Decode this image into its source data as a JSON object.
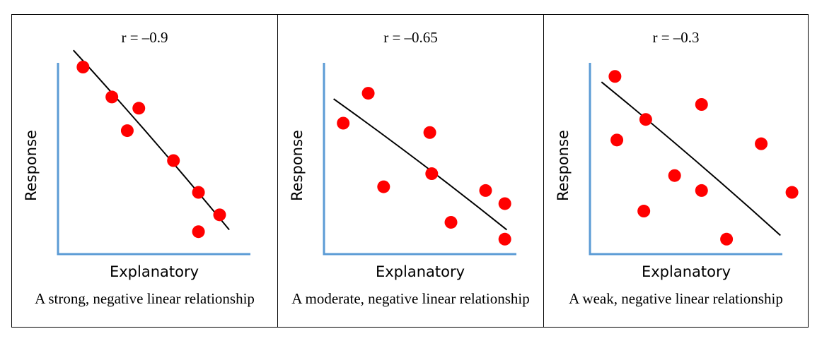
{
  "chart_data": [
    {
      "type": "scatter",
      "title": "r = –0.9",
      "caption": "A strong, negative linear relationship",
      "xlabel": "Explanatory",
      "ylabel": "Response",
      "xlim": [
        0,
        10
      ],
      "ylim": [
        0,
        10
      ],
      "points": [
        {
          "x": 1.3,
          "y": 10.0
        },
        {
          "x": 2.8,
          "y": 8.4
        },
        {
          "x": 3.6,
          "y": 6.6
        },
        {
          "x": 4.2,
          "y": 7.8
        },
        {
          "x": 6.0,
          "y": 5.0
        },
        {
          "x": 7.3,
          "y": 3.3
        },
        {
          "x": 8.4,
          "y": 2.1
        },
        {
          "x": 7.3,
          "y": 1.2
        }
      ],
      "trendline": [
        {
          "x": 0.8,
          "y": 10.9
        },
        {
          "x": 8.9,
          "y": 1.3
        }
      ],
      "colors": {
        "point": "#ff0000",
        "axis": "#5b9bd5",
        "line": "#000000"
      }
    },
    {
      "type": "scatter",
      "title": "r = –0.65",
      "caption": "A moderate, negative linear relationship",
      "xlabel": "Explanatory",
      "ylabel": "Response",
      "xlim": [
        0,
        10
      ],
      "ylim": [
        0,
        10
      ],
      "points": [
        {
          "x": 1.0,
          "y": 7.0
        },
        {
          "x": 2.3,
          "y": 8.6
        },
        {
          "x": 3.1,
          "y": 3.6
        },
        {
          "x": 5.5,
          "y": 6.5
        },
        {
          "x": 5.6,
          "y": 4.3
        },
        {
          "x": 6.6,
          "y": 1.7
        },
        {
          "x": 8.4,
          "y": 3.4
        },
        {
          "x": 9.4,
          "y": 2.7
        },
        {
          "x": 9.4,
          "y": 0.8
        }
      ],
      "trendline": [
        {
          "x": 0.5,
          "y": 8.3
        },
        {
          "x": 9.5,
          "y": 1.3
        }
      ],
      "colors": {
        "point": "#ff0000",
        "axis": "#5b9bd5",
        "line": "#000000"
      }
    },
    {
      "type": "scatter",
      "title": "r = –0.3",
      "caption": "A weak, negative linear relationship",
      "xlabel": "Explanatory",
      "ylabel": "Response",
      "xlim": [
        0,
        10
      ],
      "ylim": [
        0,
        10
      ],
      "points": [
        {
          "x": 1.3,
          "y": 9.5
        },
        {
          "x": 1.4,
          "y": 6.1
        },
        {
          "x": 2.8,
          "y": 2.3
        },
        {
          "x": 2.9,
          "y": 7.2
        },
        {
          "x": 4.4,
          "y": 4.2
        },
        {
          "x": 5.8,
          "y": 8.0
        },
        {
          "x": 5.8,
          "y": 3.4
        },
        {
          "x": 7.1,
          "y": 0.8
        },
        {
          "x": 8.9,
          "y": 5.9
        },
        {
          "x": 10.5,
          "y": 3.3
        }
      ],
      "trendline": [
        {
          "x": 0.6,
          "y": 9.2
        },
        {
          "x": 9.9,
          "y": 1.0
        }
      ],
      "colors": {
        "point": "#ff0000",
        "axis": "#5b9bd5",
        "line": "#000000"
      }
    }
  ]
}
